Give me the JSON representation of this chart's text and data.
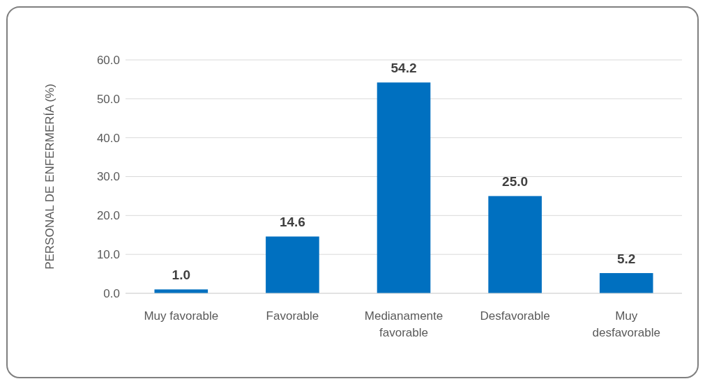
{
  "chart_data": {
    "type": "bar",
    "ylabel": "PERSONAL DE ENFERMERÍA (%)",
    "categories": [
      "Muy favorable",
      "Favorable",
      "Medianamente favorable",
      "Desfavorable",
      "Muy desfavorable"
    ],
    "values": [
      1.0,
      14.6,
      54.2,
      25.0,
      5.2
    ],
    "value_labels": [
      "1.0",
      "14.6",
      "54.2",
      "25.0",
      "5.2"
    ],
    "color": "#0070c0",
    "ylim": [
      0,
      60
    ],
    "yticks": [
      {
        "value": 0,
        "label": "0.0"
      },
      {
        "value": 10,
        "label": "10.0"
      },
      {
        "value": 20,
        "label": "20.0"
      },
      {
        "value": 30,
        "label": "30.0"
      },
      {
        "value": 40,
        "label": "40.0"
      },
      {
        "value": 50,
        "label": "50.0"
      },
      {
        "value": 60,
        "label": "60.0"
      }
    ],
    "grid": "y"
  }
}
